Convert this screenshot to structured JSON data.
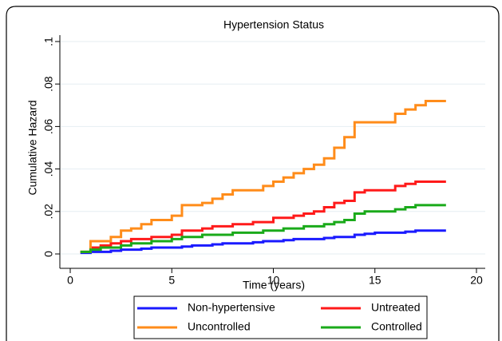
{
  "chart_data": {
    "type": "line",
    "drawstyle": "steps-post",
    "title": "Hypertension Status",
    "x_label": "Time (years)",
    "y_label": "Cumulative Hazard",
    "x": [
      0.5,
      1,
      1.5,
      2,
      2.5,
      3,
      3.5,
      4,
      4.5,
      5,
      5.5,
      6,
      6.5,
      7,
      7.5,
      8,
      8.5,
      9,
      9.5,
      10,
      10.5,
      11,
      11.5,
      12,
      12.5,
      13,
      13.5,
      14,
      14.5,
      15,
      15.5,
      16,
      16.5,
      17,
      17.5,
      18,
      18.5
    ],
    "series": [
      {
        "name": "Non-hypertensive",
        "color": "#1a1aff",
        "values": [
          0.0005,
          0.001,
          0.001,
          0.0015,
          0.002,
          0.002,
          0.0025,
          0.003,
          0.003,
          0.003,
          0.0035,
          0.004,
          0.004,
          0.0045,
          0.005,
          0.005,
          0.005,
          0.0055,
          0.006,
          0.006,
          0.0065,
          0.007,
          0.007,
          0.007,
          0.0075,
          0.008,
          0.008,
          0.009,
          0.0095,
          0.01,
          0.01,
          0.01,
          0.0105,
          0.011,
          0.011,
          0.011,
          0.011
        ]
      },
      {
        "name": "Untreated",
        "color": "#ff1a1a",
        "values": [
          0.001,
          0.003,
          0.004,
          0.005,
          0.006,
          0.007,
          0.007,
          0.008,
          0.008,
          0.009,
          0.011,
          0.011,
          0.012,
          0.013,
          0.013,
          0.014,
          0.014,
          0.015,
          0.015,
          0.017,
          0.017,
          0.018,
          0.019,
          0.02,
          0.022,
          0.024,
          0.025,
          0.029,
          0.03,
          0.03,
          0.03,
          0.032,
          0.033,
          0.034,
          0.034,
          0.034,
          0.034
        ]
      },
      {
        "name": "Uncontrolled",
        "color": "#ff8c1a",
        "values": [
          0.001,
          0.006,
          0.006,
          0.008,
          0.011,
          0.012,
          0.014,
          0.016,
          0.016,
          0.018,
          0.023,
          0.023,
          0.024,
          0.026,
          0.028,
          0.03,
          0.03,
          0.03,
          0.032,
          0.034,
          0.036,
          0.038,
          0.04,
          0.042,
          0.045,
          0.05,
          0.055,
          0.062,
          0.062,
          0.062,
          0.062,
          0.066,
          0.068,
          0.07,
          0.072,
          0.072,
          0.072
        ]
      },
      {
        "name": "Controlled",
        "color": "#1aaa1a",
        "values": [
          0.001,
          0.002,
          0.003,
          0.003,
          0.004,
          0.005,
          0.005,
          0.006,
          0.006,
          0.007,
          0.008,
          0.008,
          0.009,
          0.009,
          0.009,
          0.01,
          0.01,
          0.01,
          0.011,
          0.011,
          0.012,
          0.012,
          0.013,
          0.013,
          0.014,
          0.015,
          0.016,
          0.019,
          0.02,
          0.02,
          0.02,
          0.021,
          0.022,
          0.023,
          0.023,
          0.023,
          0.023
        ]
      }
    ],
    "xlim": [
      0,
      20
    ],
    "xticks": [
      0,
      5,
      10,
      15,
      20
    ],
    "ylim": [
      0,
      0.1
    ],
    "yticks": [
      0,
      {
        "value": 0.02,
        "label": ".02"
      },
      {
        "value": 0.04,
        "label": ".04"
      },
      {
        "value": 0.06,
        "label": ".06"
      },
      {
        "value": 0.08,
        "label": ".08"
      },
      {
        "value": 0.1,
        "label": ".1"
      }
    ],
    "grid": true
  }
}
